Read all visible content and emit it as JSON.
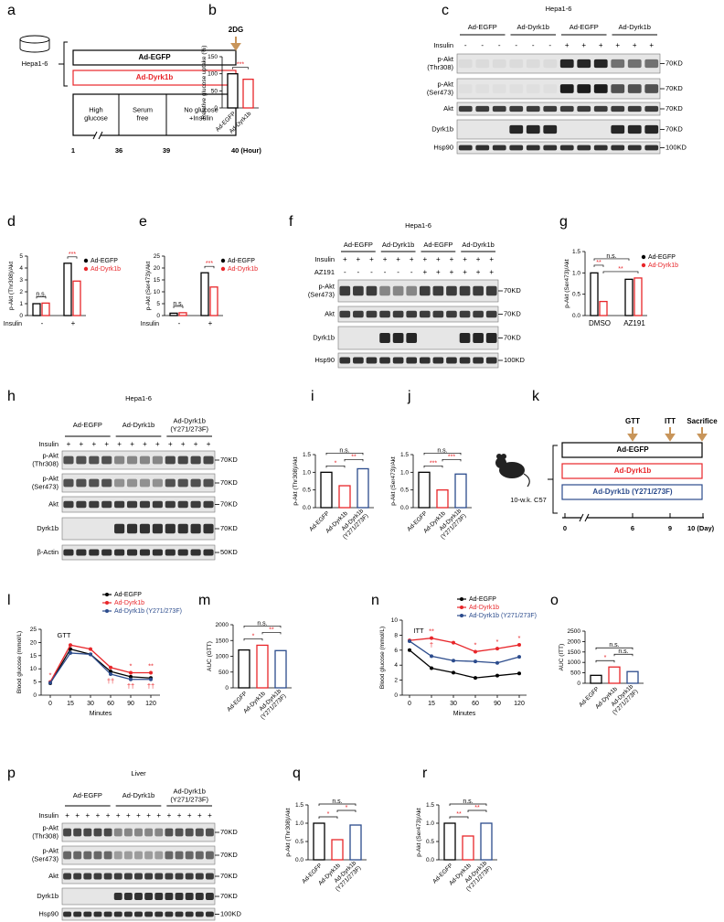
{
  "panel_labels": [
    "a",
    "b",
    "c",
    "d",
    "e",
    "f",
    "g",
    "h",
    "i",
    "j",
    "k",
    "l",
    "m",
    "n",
    "o",
    "p",
    "q",
    "r"
  ],
  "diagram_a": {
    "cell_line": "Hepa1-6",
    "groups": [
      "Ad-EGFP",
      "Ad-Dyrk1b"
    ],
    "treatment": "2DG",
    "phases": [
      "High\nglucose",
      "Serum\nfree",
      "No glucose\n+Insulin"
    ],
    "timeline": [
      1,
      36,
      39,
      "40 (Hour)"
    ]
  },
  "diagram_k": {
    "strain": "10-w.k. C57",
    "groups": [
      "Ad-EGFP",
      "Ad-Dyrk1b",
      "Ad-Dyrk1b (Y271/273F)"
    ],
    "events": [
      "GTT",
      "ITT",
      "Sacrifice"
    ],
    "timeline": [
      0,
      6,
      9,
      "10 (Day)"
    ]
  },
  "blots": {
    "c": {
      "title": "Hepa1-6",
      "groups": [
        "Ad-EGFP",
        "Ad-Dyrk1b",
        "Ad-EGFP",
        "Ad-Dyrk1b"
      ],
      "conditions": [
        {
          "label": "Insulin",
          "signs": [
            "-",
            "-",
            "-",
            "-",
            "-",
            "-",
            "+",
            "+",
            "+",
            "+",
            "+",
            "+"
          ]
        }
      ],
      "rows": [
        {
          "label": "p-Akt\n(Thr308)",
          "size": "70KD"
        },
        {
          "label": "p-Akt\n(Ser473)",
          "size": "70KD"
        },
        {
          "label": "Akt",
          "size": "70KD"
        },
        {
          "label": "Dyrk1b",
          "size": "70KD"
        },
        {
          "label": "Hsp90",
          "size": "100KD"
        }
      ]
    },
    "f": {
      "title": "Hepa1-6",
      "groups": [
        "Ad-EGFP",
        "Ad-Dyrk1b",
        "Ad-EGFP",
        "Ad-Dyrk1b"
      ],
      "conditions": [
        {
          "label": "Insulin",
          "signs": [
            "+",
            "+",
            "+",
            "+",
            "+",
            "+",
            "+",
            "+",
            "+",
            "+",
            "+",
            "+"
          ]
        },
        {
          "label": "AZ191",
          "signs": [
            "-",
            "-",
            "-",
            "-",
            "-",
            "-",
            "+",
            "+",
            "+",
            "+",
            "+",
            "+"
          ]
        }
      ],
      "rows": [
        {
          "label": "p-Akt\n(Ser473)",
          "size": "70KD"
        },
        {
          "label": "Akt",
          "size": "70KD"
        },
        {
          "label": "Dyrk1b",
          "size": "70KD"
        },
        {
          "label": "Hsp90",
          "size": "100KD"
        }
      ]
    },
    "h": {
      "title": "Hepa1-6",
      "groups": [
        "Ad-EGFP",
        "Ad-Dyrk1b",
        "Ad-Dyrk1b\n(Y271/273F)"
      ],
      "conditions": [
        {
          "label": "Insulin",
          "signs": [
            "+",
            "+",
            "+",
            "+",
            "+",
            "+",
            "+",
            "+",
            "+",
            "+",
            "+",
            "+"
          ]
        }
      ],
      "rows": [
        {
          "label": "p-Akt\n(Thr308)",
          "size": "70KD"
        },
        {
          "label": "p-Akt\n(Ser473)",
          "size": "70KD"
        },
        {
          "label": "Akt",
          "size": "70KD"
        },
        {
          "label": "Dyrk1b",
          "size": "70KD"
        },
        {
          "label": "β-Actin",
          "size": "50KD"
        }
      ]
    },
    "p": {
      "title": "Liver",
      "groups": [
        "Ad-EGFP",
        "Ad-Dyrk1b",
        "Ad-Dyrk1b\n(Y271/273F)"
      ],
      "conditions": [
        {
          "label": "Insulin",
          "signs": [
            "+",
            "+",
            "+",
            "+",
            "+",
            "+",
            "+",
            "+",
            "+",
            "+",
            "+",
            "+",
            "+",
            "+",
            "+"
          ]
        }
      ],
      "rows": [
        {
          "label": "p-Akt\n(Thr308)",
          "size": "70KD"
        },
        {
          "label": "p-Akt\n(Ser473)",
          "size": "70KD"
        },
        {
          "label": "Akt",
          "size": "70KD"
        },
        {
          "label": "Dyrk1b",
          "size": "70KD"
        },
        {
          "label": "Hsp90",
          "size": "100KD"
        }
      ]
    }
  },
  "chart_data": [
    {
      "type": "bar",
      "ylabel": "Relative glucose uptake (%)",
      "categories": [
        "Ad-EGFP",
        "Ad-Dyrk1b"
      ],
      "values": [
        100,
        84
      ],
      "colors": [
        "#000000",
        "#e8262a"
      ],
      "ylim": [
        0,
        150
      ],
      "yticks": [
        0,
        50,
        100,
        150
      ],
      "significance": [
        {
          "pair": [
            0,
            1
          ],
          "label": "***"
        }
      ]
    },
    {
      "type": "grouped_bar",
      "ylabel": "p-Akt (Thr308)/Akt",
      "xlabel": "Insulin",
      "categories": [
        "-",
        "+"
      ],
      "series": [
        {
          "name": "Ad-EGFP",
          "color": "#000000",
          "values": [
            1.0,
            4.4
          ]
        },
        {
          "name": "Ad-Dyrk1b",
          "color": "#e8262a",
          "values": [
            1.05,
            2.9
          ]
        }
      ],
      "ylim": [
        0,
        5
      ],
      "yticks": [
        0,
        1,
        2,
        3,
        4,
        5
      ],
      "significance": [
        {
          "pair": [
            0,
            1
          ],
          "label": "n.s."
        },
        {
          "pair": [
            2,
            3
          ],
          "label": "***"
        }
      ]
    },
    {
      "type": "grouped_bar",
      "ylabel": "p-Akt (Ser473)/Akt",
      "xlabel": "Insulin",
      "categories": [
        "-",
        "+"
      ],
      "series": [
        {
          "name": "Ad-EGFP",
          "color": "#000000",
          "values": [
            1.0,
            18
          ]
        },
        {
          "name": "Ad-Dyrk1b",
          "color": "#e8262a",
          "values": [
            1.2,
            12
          ]
        }
      ],
      "ylim": [
        0,
        25
      ],
      "yticks": [
        0,
        5,
        10,
        15,
        20,
        25
      ],
      "significance": [
        {
          "pair": [
            0,
            1
          ],
          "label": "n.s."
        },
        {
          "pair": [
            2,
            3
          ],
          "label": "***"
        }
      ]
    },
    {
      "type": "grouped_bar",
      "ylabel": "p-Akt (Ser473)/Akt",
      "categories": [
        "DMSO",
        "AZ191"
      ],
      "series": [
        {
          "name": "Ad-EGFP",
          "color": "#000000",
          "values": [
            1.0,
            0.85
          ]
        },
        {
          "name": "Ad-Dyrk1b",
          "color": "#e8262a",
          "values": [
            0.33,
            0.88
          ]
        }
      ],
      "ylim": [
        0,
        1.5
      ],
      "yticks": [
        {
          "value": 0,
          "label": "0.0"
        },
        0.5,
        {
          "value": 1,
          "label": "1.0"
        },
        1.5
      ],
      "significance": [
        {
          "pair": [
            1,
            3
          ],
          "label": "**"
        },
        {
          "pair": [
            0,
            1
          ],
          "label": "**"
        },
        {
          "pair": [
            0,
            2
          ],
          "label": "n.s."
        }
      ]
    },
    {
      "type": "bar",
      "ylabel": "p-Akt (Thr308)/Akt",
      "categories": [
        "Ad-EGFP",
        "Ad-Dyrk1b",
        "Ad-Dyrk1b\n(Y271/273F)"
      ],
      "values": [
        1.0,
        0.62,
        1.1
      ],
      "colors": [
        "#000000",
        "#e8262a",
        "#2b4b8c"
      ],
      "ylim": [
        0,
        1.5
      ],
      "yticks": [
        {
          "value": 0,
          "label": "0.0"
        },
        0.5,
        {
          "value": 1,
          "label": "1.0"
        },
        1.5
      ],
      "significance": [
        {
          "pair": [
            0,
            1
          ],
          "label": "*"
        },
        {
          "pair": [
            1,
            2
          ],
          "label": "**"
        },
        {
          "pair": [
            0,
            2
          ],
          "label": "n.s."
        }
      ]
    },
    {
      "type": "bar",
      "ylabel": "p-Akt (Ser473)/Akt",
      "categories": [
        "Ad-EGFP",
        "Ad-Dyrk1b",
        "Ad-Dyrk1b\n(Y271/273F)"
      ],
      "values": [
        1.0,
        0.5,
        0.95
      ],
      "colors": [
        "#000000",
        "#e8262a",
        "#2b4b8c"
      ],
      "ylim": [
        0,
        1.5
      ],
      "yticks": [
        {
          "value": 0,
          "label": "0.0"
        },
        0.5,
        {
          "value": 1,
          "label": "1.0"
        },
        1.5
      ],
      "significance": [
        {
          "pair": [
            0,
            1
          ],
          "label": "***"
        },
        {
          "pair": [
            1,
            2
          ],
          "label": "***"
        },
        {
          "pair": [
            0,
            2
          ],
          "label": "n.s."
        }
      ]
    },
    {
      "type": "line",
      "title": "GTT",
      "ylabel": "Blood glucose (mmol/L)",
      "xlabel": "Minutes",
      "categories": [
        "0",
        "15",
        "30",
        "60",
        "90",
        "120"
      ],
      "series": [
        {
          "name": "Ad-EGFP",
          "color": "#000000",
          "values": [
            4.5,
            17.5,
            15.5,
            9,
            7,
            6.5
          ]
        },
        {
          "name": "Ad-Dyrk1b",
          "color": "#e8262a",
          "values": [
            5,
            19,
            17.5,
            10.5,
            8.5,
            8.5
          ]
        },
        {
          "name": "Ad-Dyrk1b (Y271/273F)",
          "color": "#2b4b8c",
          "values": [
            4.7,
            16,
            15.5,
            8,
            6,
            6
          ]
        }
      ],
      "ylim": [
        0,
        25
      ],
      "yticks": [
        0,
        5,
        10,
        15,
        20,
        25
      ],
      "annotations": [
        {
          "series": 1,
          "index": 0,
          "text": "*",
          "side": "above"
        },
        {
          "series": 1,
          "index": 4,
          "text": "*",
          "side": "above"
        },
        {
          "series": 1,
          "index": 5,
          "text": "**",
          "side": "above"
        },
        {
          "series": 2,
          "index": 3,
          "text": "††",
          "side": "below"
        },
        {
          "series": 2,
          "index": 4,
          "text": "††",
          "side": "below"
        },
        {
          "series": 2,
          "index": 5,
          "text": "††",
          "side": "below"
        }
      ]
    },
    {
      "type": "bar",
      "ylabel": "AUC (GTT)",
      "categories": [
        "Ad-EGFP",
        "Ad-Dyrk1b",
        "Ad-Dyrk1b\n(Y271/273F)"
      ],
      "values": [
        1200,
        1350,
        1180
      ],
      "colors": [
        "#000000",
        "#e8262a",
        "#2b4b8c"
      ],
      "ylim": [
        0,
        2000
      ],
      "yticks": [
        0,
        500,
        1000,
        1500,
        2000
      ],
      "significance": [
        {
          "pair": [
            0,
            1
          ],
          "label": "*"
        },
        {
          "pair": [
            1,
            2
          ],
          "label": "**"
        },
        {
          "pair": [
            0,
            2
          ],
          "label": "n.s."
        }
      ]
    },
    {
      "type": "line",
      "title": "ITT",
      "ylabel": "Blood glucose (mmol/L)",
      "xlabel": "Minutes",
      "categories": [
        "0",
        "15",
        "30",
        "60",
        "90",
        "120"
      ],
      "series": [
        {
          "name": "Ad-EGFP",
          "color": "#000000",
          "values": [
            6,
            3.6,
            3,
            2.3,
            2.6,
            2.9
          ]
        },
        {
          "name": "Ad-Dyrk1b",
          "color": "#e8262a",
          "values": [
            7.3,
            7.6,
            7,
            5.8,
            6.2,
            6.7
          ]
        },
        {
          "name": "Ad-Dyrk1b (Y271/273F)",
          "color": "#2b4b8c",
          "values": [
            7.2,
            5.2,
            4.6,
            4.5,
            4.3,
            5.1
          ]
        }
      ],
      "ylim": [
        0,
        10
      ],
      "yticks": [
        0,
        2,
        4,
        6,
        8,
        10
      ],
      "annotations": [
        {
          "series": 1,
          "index": 1,
          "text": "**",
          "side": "above"
        },
        {
          "series": 1,
          "index": 1,
          "text": "†",
          "side": "below"
        },
        {
          "series": 1,
          "index": 3,
          "text": "*",
          "side": "above"
        },
        {
          "series": 1,
          "index": 4,
          "text": "*",
          "side": "above"
        },
        {
          "series": 1,
          "index": 5,
          "text": "*",
          "side": "above"
        }
      ]
    },
    {
      "type": "bar",
      "ylabel": "AUC (ITT)",
      "categories": [
        "Ad-EGFP",
        "Ad-Dyrk1b",
        "Ad-Dyrk1b\n(Y271/273F)"
      ],
      "values": [
        380,
        780,
        560
      ],
      "colors": [
        "#000000",
        "#e8262a",
        "#2b4b8c"
      ],
      "ylim": [
        0,
        2500
      ],
      "yticks": [
        0,
        500,
        1000,
        1500,
        2000,
        2500
      ],
      "significance": [
        {
          "pair": [
            0,
            1
          ],
          "label": "*"
        },
        {
          "pair": [
            1,
            2
          ],
          "label": "n.s."
        },
        {
          "pair": [
            0,
            2
          ],
          "label": "n.s."
        }
      ]
    },
    {
      "type": "bar",
      "ylabel": "p-Akt (Thr308)/Akt",
      "categories": [
        "Ad-EGFP",
        "Ad-Dyrk1b",
        "Ad-Dyrk1b\n(Y271/273F)"
      ],
      "values": [
        1.0,
        0.55,
        0.95
      ],
      "colors": [
        "#000000",
        "#e8262a",
        "#2b4b8c"
      ],
      "ylim": [
        0,
        1.5
      ],
      "yticks": [
        {
          "value": 0,
          "label": "0.0"
        },
        0.5,
        {
          "value": 1,
          "label": "1.0"
        },
        1.5
      ],
      "significance": [
        {
          "pair": [
            0,
            1
          ],
          "label": "*"
        },
        {
          "pair": [
            1,
            2
          ],
          "label": "*"
        },
        {
          "pair": [
            0,
            2
          ],
          "label": "n.s."
        }
      ]
    },
    {
      "type": "bar",
      "ylabel": "p-Akt (Ser473)/Akt",
      "categories": [
        "Ad-EGFP",
        "Ad-Dyrk1b",
        "Ad-Dyrk1b\n(Y271/273F)"
      ],
      "values": [
        1.0,
        0.65,
        1.0
      ],
      "colors": [
        "#000000",
        "#e8262a",
        "#2b4b8c"
      ],
      "ylim": [
        0,
        1.5
      ],
      "yticks": [
        {
          "value": 0,
          "label": "0.0"
        },
        0.5,
        {
          "value": 1,
          "label": "1.0"
        },
        1.5
      ],
      "significance": [
        {
          "pair": [
            0,
            1
          ],
          "label": "**"
        },
        {
          "pair": [
            1,
            2
          ],
          "label": "**"
        },
        {
          "pair": [
            0,
            2
          ],
          "label": "n.s."
        }
      ]
    }
  ]
}
